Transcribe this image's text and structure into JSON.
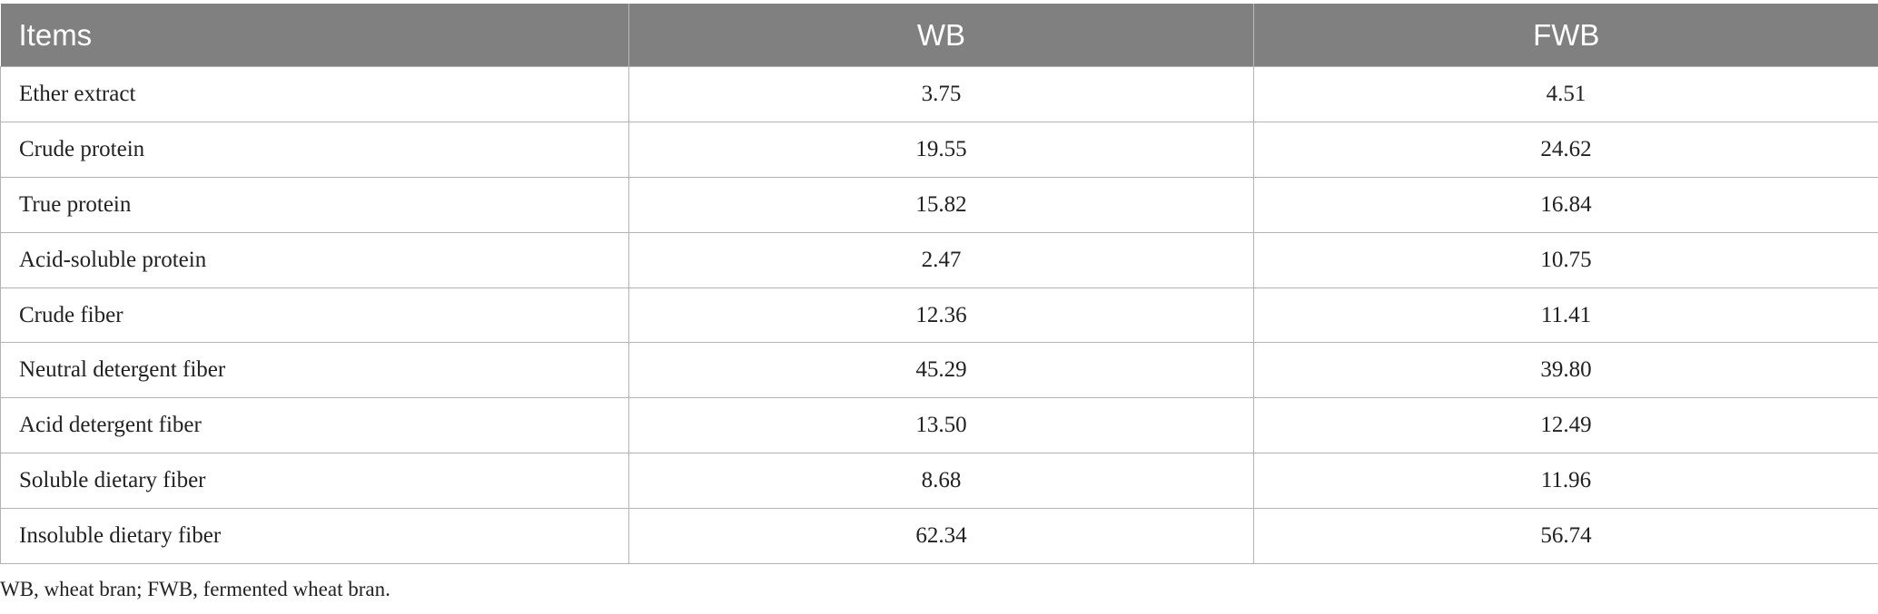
{
  "table": {
    "headers": [
      "Items",
      "WB",
      "FWB"
    ],
    "rows": [
      [
        "Ether extract",
        "3.75",
        "4.51"
      ],
      [
        "Crude protein",
        "19.55",
        "24.62"
      ],
      [
        "True protein",
        "15.82",
        "16.84"
      ],
      [
        "Acid-soluble protein",
        "2.47",
        "10.75"
      ],
      [
        "Crude fiber",
        "12.36",
        "11.41"
      ],
      [
        "Neutral detergent fiber",
        "45.29",
        "39.80"
      ],
      [
        "Acid detergent fiber",
        "13.50",
        "12.49"
      ],
      [
        "Soluble dietary fiber",
        "8.68",
        "11.96"
      ],
      [
        "Insoluble dietary fiber",
        "62.34",
        "56.74"
      ]
    ]
  },
  "footnote": "WB, wheat bran; FWB, fermented wheat bran.",
  "colors": {
    "header_bg": "#808080",
    "header_text": "#ffffff",
    "border": "#b3b3b3"
  }
}
